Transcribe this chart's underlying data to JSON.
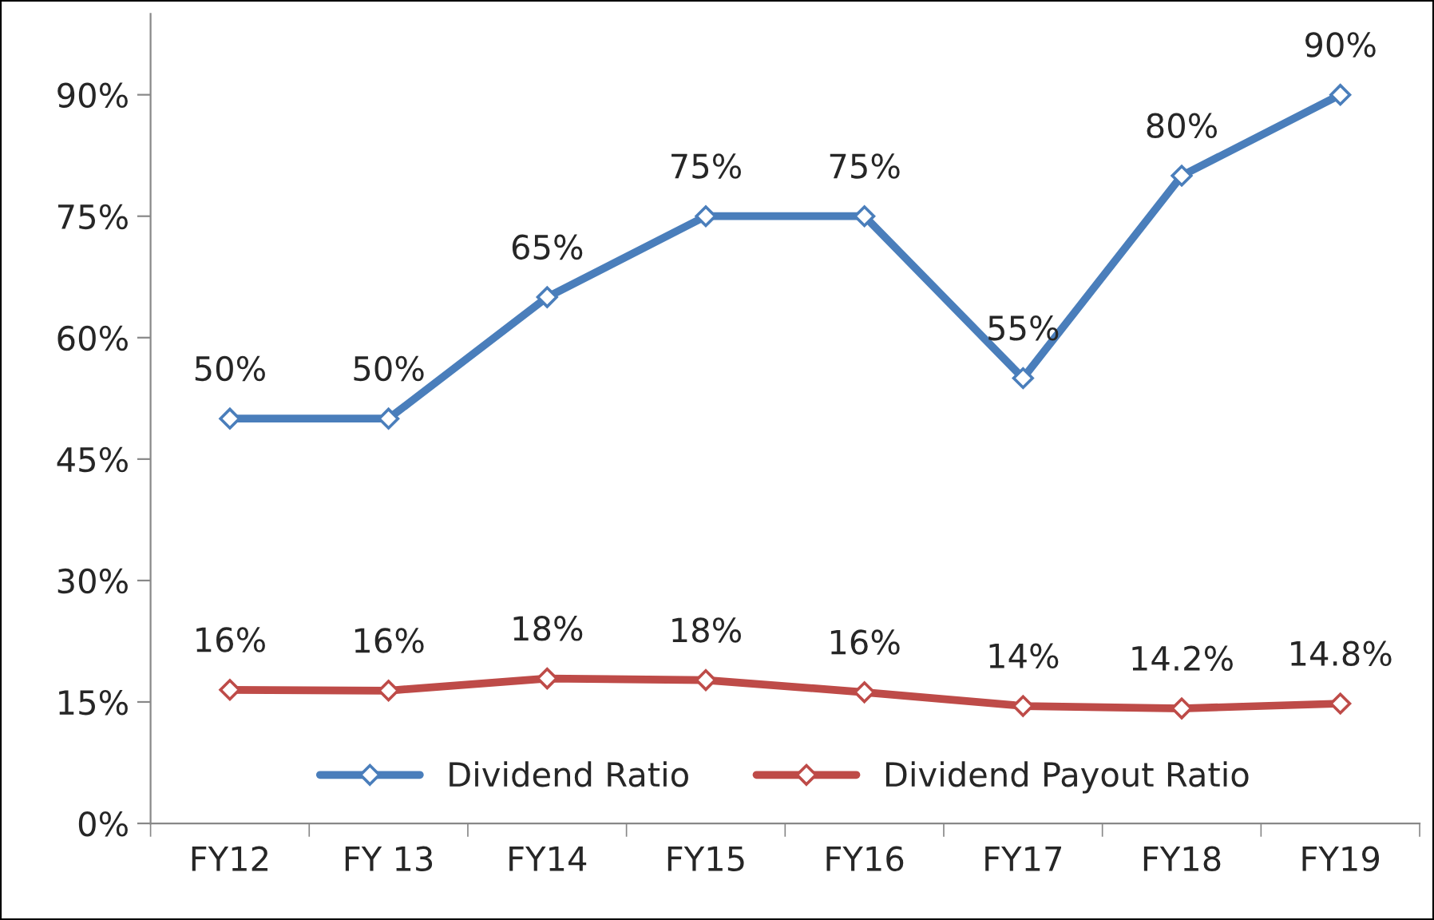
{
  "chart_data": {
    "type": "line",
    "categories": [
      "FY12",
      "FY 13",
      "FY14",
      "FY15",
      "FY16",
      "FY17",
      "FY18",
      "FY19"
    ],
    "series": [
      {
        "name": "Dividend Ratio",
        "color": "#4a7ebb",
        "values": [
          50,
          50,
          65,
          75,
          75,
          55,
          80,
          90
        ],
        "value_labels": [
          "50%",
          "50%",
          "65%",
          "75%",
          "75%",
          "55%",
          "80%",
          "90%"
        ]
      },
      {
        "name": "Dividend Payout Ratio",
        "color": "#be4b48",
        "values": [
          16.5,
          16.4,
          17.9,
          17.7,
          16.2,
          14.5,
          14.2,
          14.8
        ],
        "value_labels": [
          "16%",
          "16%",
          "18%",
          "18%",
          "16%",
          "14%",
          "14.2%",
          "14.8%"
        ]
      }
    ],
    "ylim": [
      0,
      100
    ],
    "yticks": [
      {
        "value": 0,
        "label": "0%"
      },
      {
        "value": 15,
        "label": "15%"
      },
      {
        "value": 30,
        "label": "30%"
      },
      {
        "value": 45,
        "label": "45%"
      },
      {
        "value": 60,
        "label": "60%"
      },
      {
        "value": 75,
        "label": "75%"
      },
      {
        "value": 90,
        "label": "90%"
      }
    ],
    "grid": false,
    "legend": "bottom",
    "marker": "diamond",
    "line_style": "solid"
  }
}
